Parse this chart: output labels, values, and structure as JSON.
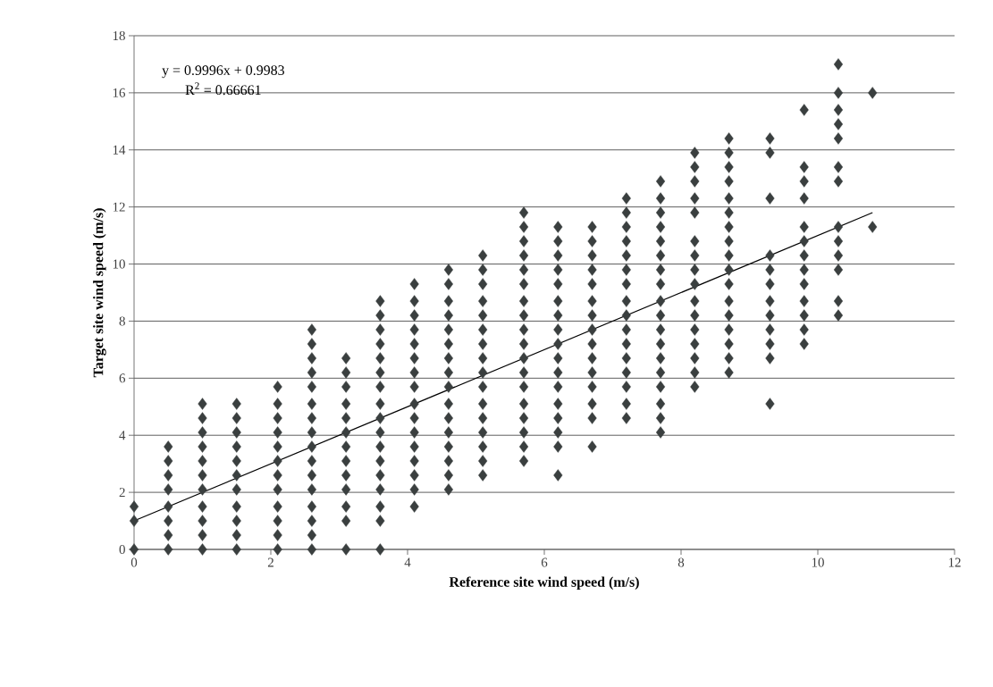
{
  "chart_data": {
    "type": "scatter",
    "xlabel": "Reference site wind speed (m/s)",
    "ylabel": "Target site wind speed (m/s)",
    "annotations": [
      "y = 0.9996x + 0.9983",
      "R$^{2}$ = 0.66661"
    ],
    "xlim": [
      0,
      12
    ],
    "xticks": [
      0,
      2,
      4,
      6,
      8,
      10,
      12
    ],
    "ylim": [
      0,
      18
    ],
    "yticks": [
      0,
      2,
      4,
      6,
      8,
      10,
      12,
      14,
      16,
      18
    ],
    "grid": "y",
    "marker": "diamond",
    "series": [
      {
        "color": "#3a3f3f",
        "x": [
          0,
          0,
          0
        ],
        "values": [
          0,
          1.0,
          1.5
        ]
      },
      {
        "color": "#3a3f3f",
        "x": [
          0.5,
          0.5,
          0.5,
          0.5,
          0.5,
          0.5,
          0.5,
          0.5
        ],
        "values": [
          0,
          0.5,
          1.0,
          1.5,
          2.1,
          2.6,
          3.1,
          3.6
        ]
      },
      {
        "color": "#3a3f3f",
        "x": [
          1.0,
          1.0,
          1.0,
          1.0,
          1.0,
          1.0,
          1.0,
          1.0,
          1.0,
          1.0,
          1.0
        ],
        "values": [
          0,
          0.5,
          1.0,
          1.5,
          2.1,
          2.6,
          3.1,
          3.6,
          4.1,
          4.6,
          5.1
        ]
      },
      {
        "color": "#3a3f3f",
        "x": [
          1.5,
          1.5,
          1.5,
          1.5,
          1.5,
          1.5,
          1.5,
          1.5,
          1.5,
          1.5,
          1.5
        ],
        "values": [
          0,
          0.5,
          1.0,
          1.5,
          2.1,
          2.6,
          3.1,
          3.6,
          4.1,
          4.6,
          5.1
        ]
      },
      {
        "color": "#3a3f3f",
        "x": [
          2.1,
          2.1,
          2.1,
          2.1,
          2.1,
          2.1,
          2.1,
          2.1,
          2.1,
          2.1,
          2.1,
          2.1
        ],
        "values": [
          0,
          0.5,
          1.0,
          1.5,
          2.1,
          2.6,
          3.1,
          3.6,
          4.1,
          4.6,
          5.1,
          5.7
        ]
      },
      {
        "color": "#3a3f3f",
        "x": [
          2.6,
          2.6,
          2.6,
          2.6,
          2.6,
          2.6,
          2.6,
          2.6,
          2.6,
          2.6,
          2.6,
          2.6,
          2.6,
          2.6,
          2.6,
          2.6
        ],
        "values": [
          0,
          0.5,
          1.0,
          1.5,
          2.1,
          2.6,
          3.1,
          3.6,
          4.1,
          4.6,
          5.1,
          5.7,
          6.2,
          6.7,
          7.2,
          7.7
        ]
      },
      {
        "color": "#3a3f3f",
        "x": [
          3.1,
          3.1,
          3.1,
          3.1,
          3.1,
          3.1,
          3.1,
          3.1,
          3.1,
          3.1,
          3.1,
          3.1,
          3.1
        ],
        "values": [
          0,
          1.0,
          1.5,
          2.1,
          2.6,
          3.1,
          3.6,
          4.1,
          4.6,
          5.1,
          5.7,
          6.2,
          6.7
        ]
      },
      {
        "color": "#3a3f3f",
        "x": [
          3.6,
          3.6,
          3.6,
          3.6,
          3.6,
          3.6,
          3.6,
          3.6,
          3.6,
          3.6,
          3.6,
          3.6,
          3.6,
          3.6,
          3.6,
          3.6,
          3.6
        ],
        "values": [
          0,
          1.0,
          1.5,
          2.1,
          2.6,
          3.1,
          3.6,
          4.1,
          4.6,
          5.1,
          5.7,
          6.2,
          6.7,
          7.2,
          7.7,
          8.2,
          8.7
        ]
      },
      {
        "color": "#3a3f3f",
        "x": [
          4.1,
          4.1,
          4.1,
          4.1,
          4.1,
          4.1,
          4.1,
          4.1,
          4.1,
          4.1,
          4.1,
          4.1,
          4.1,
          4.1,
          4.1,
          4.1
        ],
        "values": [
          1.5,
          2.1,
          2.6,
          3.1,
          3.6,
          4.1,
          4.6,
          5.1,
          5.7,
          6.2,
          6.7,
          7.2,
          7.7,
          8.2,
          8.7,
          9.3
        ]
      },
      {
        "color": "#3a3f3f",
        "x": [
          4.6,
          4.6,
          4.6,
          4.6,
          4.6,
          4.6,
          4.6,
          4.6,
          4.6,
          4.6,
          4.6,
          4.6,
          4.6,
          4.6,
          4.6,
          4.6
        ],
        "values": [
          2.1,
          2.6,
          3.1,
          3.6,
          4.1,
          4.6,
          5.1,
          5.7,
          6.2,
          6.7,
          7.2,
          7.7,
          8.2,
          8.7,
          9.3,
          9.8
        ]
      },
      {
        "color": "#3a3f3f",
        "x": [
          5.1,
          5.1,
          5.1,
          5.1,
          5.1,
          5.1,
          5.1,
          5.1,
          5.1,
          5.1,
          5.1,
          5.1,
          5.1,
          5.1,
          5.1,
          5.1
        ],
        "values": [
          2.6,
          3.1,
          3.6,
          4.1,
          4.6,
          5.1,
          5.7,
          6.2,
          6.7,
          7.2,
          7.7,
          8.2,
          8.7,
          9.3,
          9.8,
          10.3
        ]
      },
      {
        "color": "#3a3f3f",
        "x": [
          5.7,
          5.7,
          5.7,
          5.7,
          5.7,
          5.7,
          5.7,
          5.7,
          5.7,
          5.7,
          5.7,
          5.7,
          5.7,
          5.7,
          5.7,
          5.7,
          5.7,
          5.7
        ],
        "values": [
          3.1,
          3.6,
          4.1,
          4.6,
          5.1,
          5.7,
          6.2,
          6.7,
          7.2,
          7.7,
          8.2,
          8.7,
          9.3,
          9.8,
          10.3,
          10.8,
          11.3,
          11.8
        ]
      },
      {
        "color": "#3a3f3f",
        "x": [
          6.2,
          6.2,
          6.2,
          6.2,
          6.2,
          6.2,
          6.2,
          6.2,
          6.2,
          6.2,
          6.2,
          6.2,
          6.2,
          6.2,
          6.2,
          6.2,
          6.2
        ],
        "values": [
          2.6,
          3.6,
          4.1,
          4.6,
          5.1,
          5.7,
          6.2,
          6.7,
          7.2,
          7.7,
          8.2,
          8.7,
          9.3,
          9.8,
          10.3,
          10.8,
          11.3
        ]
      },
      {
        "color": "#3a3f3f",
        "x": [
          6.7,
          6.7,
          6.7,
          6.7,
          6.7,
          6.7,
          6.7,
          6.7,
          6.7,
          6.7,
          6.7,
          6.7,
          6.7,
          6.7,
          6.7
        ],
        "values": [
          3.6,
          4.6,
          5.1,
          5.7,
          6.2,
          6.7,
          7.2,
          7.7,
          8.2,
          8.7,
          9.3,
          9.8,
          10.3,
          10.8,
          11.3
        ]
      },
      {
        "color": "#3a3f3f",
        "x": [
          7.2,
          7.2,
          7.2,
          7.2,
          7.2,
          7.2,
          7.2,
          7.2,
          7.2,
          7.2,
          7.2,
          7.2,
          7.2,
          7.2,
          7.2,
          7.2
        ],
        "values": [
          4.6,
          5.1,
          5.7,
          6.2,
          6.7,
          7.2,
          7.7,
          8.2,
          8.7,
          9.3,
          9.8,
          10.3,
          10.8,
          11.3,
          11.8,
          12.3
        ]
      },
      {
        "color": "#3a3f3f",
        "x": [
          7.7,
          7.7,
          7.7,
          7.7,
          7.7,
          7.7,
          7.7,
          7.7,
          7.7,
          7.7,
          7.7,
          7.7,
          7.7,
          7.7,
          7.7,
          7.7,
          7.7,
          7.7
        ],
        "values": [
          4.1,
          4.6,
          5.1,
          5.7,
          6.2,
          6.7,
          7.2,
          7.7,
          8.2,
          8.7,
          9.3,
          9.8,
          10.3,
          10.8,
          11.3,
          11.8,
          12.3,
          12.9
        ]
      },
      {
        "color": "#3a3f3f",
        "x": [
          8.2,
          8.2,
          8.2,
          8.2,
          8.2,
          8.2,
          8.2,
          8.2,
          8.2,
          8.2,
          8.2,
          8.2,
          8.2,
          8.2,
          8.2,
          8.2
        ],
        "values": [
          5.7,
          6.2,
          6.7,
          7.2,
          7.7,
          8.2,
          8.7,
          9.3,
          9.8,
          10.3,
          10.8,
          11.8,
          12.3,
          12.9,
          13.4,
          13.9
        ]
      },
      {
        "color": "#3a3f3f",
        "x": [
          8.7,
          8.7,
          8.7,
          8.7,
          8.7,
          8.7,
          8.7,
          8.7,
          8.7,
          8.7,
          8.7,
          8.7,
          8.7,
          8.7,
          8.7,
          8.7,
          8.7
        ],
        "values": [
          6.2,
          6.7,
          7.2,
          7.7,
          8.2,
          8.7,
          9.3,
          9.8,
          10.3,
          10.8,
          11.3,
          11.8,
          12.3,
          12.9,
          13.4,
          13.9,
          14.4
        ]
      },
      {
        "color": "#3a3f3f",
        "x": [
          9.3,
          9.3,
          9.3,
          9.3,
          9.3,
          9.3,
          9.3,
          9.3,
          9.3,
          9.3,
          9.3,
          9.3
        ],
        "values": [
          5.1,
          6.7,
          7.2,
          7.7,
          8.2,
          8.7,
          9.3,
          9.8,
          10.3,
          12.3,
          13.9,
          14.4
        ]
      },
      {
        "color": "#3a3f3f",
        "x": [
          9.8,
          9.8,
          9.8,
          9.8,
          9.8,
          9.8,
          9.8,
          9.8,
          9.8,
          9.8,
          9.8,
          9.8,
          9.8
        ],
        "values": [
          7.2,
          7.7,
          8.2,
          8.7,
          9.3,
          9.8,
          10.3,
          10.8,
          11.3,
          12.3,
          12.9,
          13.4,
          15.4
        ]
      },
      {
        "color": "#3a3f3f",
        "x": [
          10.3,
          10.3,
          10.3,
          10.3,
          10.3,
          10.3,
          10.3,
          10.3,
          10.3,
          10.3,
          10.3,
          10.3,
          10.3
        ],
        "values": [
          8.2,
          8.7,
          9.8,
          10.3,
          10.8,
          11.3,
          12.9,
          13.4,
          14.4,
          14.9,
          15.4,
          16.0,
          17.0
        ]
      },
      {
        "color": "#3a3f3f",
        "x": [
          10.8,
          10.8
        ],
        "values": [
          11.3,
          16.0
        ]
      },
      {
        "type": "line",
        "color": "#000000",
        "marker": "none",
        "x": [
          0,
          10.8
        ],
        "values": [
          1.0,
          11.8
        ]
      }
    ]
  }
}
